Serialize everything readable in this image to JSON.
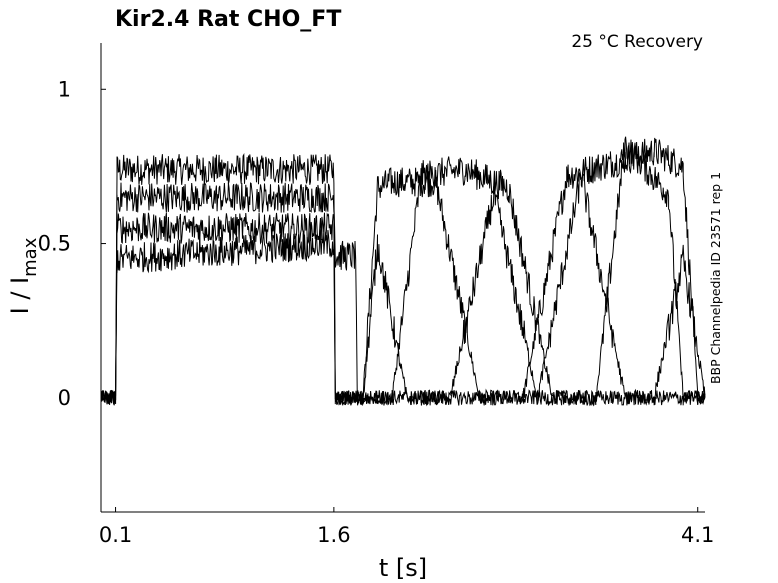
{
  "chart_data": {
    "type": "line",
    "title": "Kir2.4  Rat  CHO_FT",
    "condition": "25 °C  Recovery",
    "side_label": "BBP Channelpedia ID 23571 rep 1",
    "xlabel": "t [s]",
    "ylabel_main": "I / I",
    "ylabel_sub": "max",
    "xlim": [
      0.0,
      4.15
    ],
    "ylim": [
      -0.37,
      1.15
    ],
    "x_ticks": [
      {
        "value": 0.1,
        "label": "0.1"
      },
      {
        "value": 1.6,
        "label": "1.6"
      },
      {
        "value": 4.1,
        "label": "4.1"
      }
    ],
    "y_ticks": [
      {
        "value": 0,
        "label": "0"
      },
      {
        "value": 0.5,
        "label": "0.5"
      },
      {
        "value": 1,
        "label": "1"
      }
    ],
    "grid": false,
    "series_color": "#000000",
    "series": [
      {
        "x": [
          0.0,
          0.1,
          0.11,
          1.6,
          1.61,
          1.8,
          1.9,
          2.0,
          2.3,
          2.6,
          2.9,
          3.2,
          3.5,
          3.8,
          4.0,
          4.1,
          4.15
        ],
        "y": [
          0.0,
          0.0,
          0.74,
          0.74,
          0.0,
          0.0,
          0.68,
          0.7,
          0.7,
          0.0,
          0.0,
          0.72,
          0.76,
          0.8,
          0.75,
          0.0,
          0.0
        ]
      },
      {
        "x": [
          0.0,
          0.1,
          0.11,
          1.6,
          1.61,
          1.75,
          1.76,
          2.0,
          2.2,
          2.5,
          2.8,
          3.1,
          3.4,
          3.6,
          3.9,
          4.0,
          4.1,
          4.15
        ],
        "y": [
          0.0,
          0.0,
          0.65,
          0.65,
          0.46,
          0.46,
          0.0,
          0.0,
          0.72,
          0.74,
          0.68,
          0.0,
          0.0,
          0.82,
          0.66,
          0.0,
          0.0,
          0.0
        ]
      },
      {
        "x": [
          0.0,
          0.1,
          0.11,
          1.6,
          1.61,
          1.8,
          1.9,
          2.1,
          2.4,
          2.7,
          3.0,
          3.3,
          3.6,
          3.8,
          4.0,
          4.15
        ],
        "y": [
          0.0,
          0.0,
          0.55,
          0.55,
          0.0,
          0.0,
          0.5,
          0.0,
          0.0,
          0.66,
          0.0,
          0.72,
          0.0,
          0.0,
          0.45,
          0.0
        ]
      },
      {
        "x": [
          0.0,
          0.1,
          0.11,
          1.6,
          1.61,
          2.2,
          2.5,
          2.9,
          3.4,
          3.7,
          4.15
        ],
        "y": [
          0.0,
          0.0,
          0.45,
          0.5,
          0.0,
          0.0,
          0.0,
          0.0,
          0.0,
          0.0,
          0.0
        ]
      }
    ]
  }
}
